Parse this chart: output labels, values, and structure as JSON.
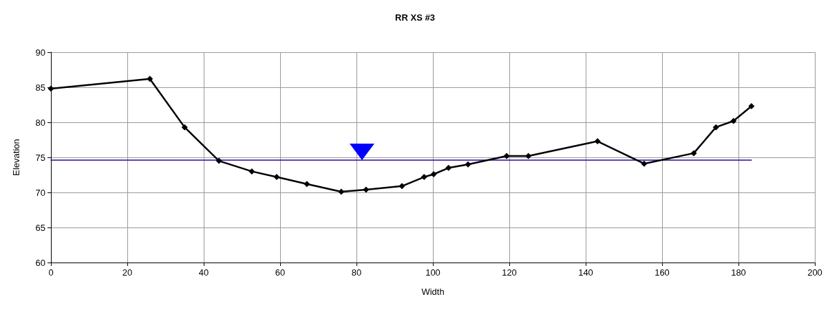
{
  "chart_data": {
    "type": "line",
    "title": "RR XS #3",
    "xlabel": "Width",
    "ylabel": "Elevation",
    "xlim": [
      0,
      200
    ],
    "xticks": [
      0,
      20,
      40,
      60,
      80,
      100,
      120,
      140,
      160,
      180,
      200
    ],
    "ylim": [
      60,
      90
    ],
    "yticks": [
      60,
      65,
      70,
      75,
      80,
      85,
      90
    ],
    "grid": true,
    "series": [
      {
        "color": "#000000",
        "marker": "diamond",
        "line_style": "solid",
        "x": [
          0,
          25.9,
          35.0,
          44.0,
          52.6,
          59.1,
          67.0,
          76.0,
          82.5,
          91.9,
          97.7,
          100.2,
          104.1,
          109.2,
          119.3,
          125.0,
          143.1,
          155.3,
          168.3,
          174.1,
          178.7,
          183.4
        ],
        "values": [
          84.8,
          86.2,
          79.3,
          74.5,
          73.0,
          72.2,
          71.2,
          70.1,
          70.4,
          70.9,
          72.2,
          72.6,
          73.5,
          74.0,
          75.2,
          75.2,
          77.3,
          74.1,
          75.6,
          79.3,
          80.2,
          82.3
        ]
      },
      {
        "color": "#330099",
        "marker": "none",
        "line_style": "solid",
        "x": [
          0,
          183.4
        ],
        "values": [
          74.6,
          74.6
        ]
      }
    ]
  }
}
